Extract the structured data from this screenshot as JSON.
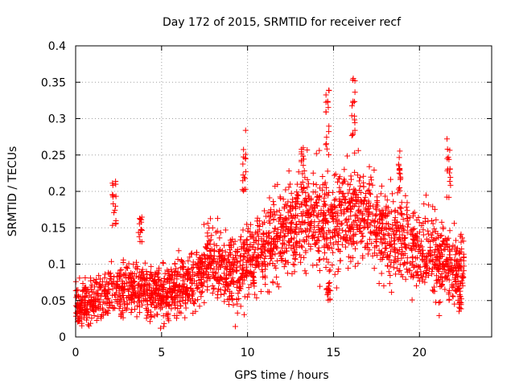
{
  "chart_data": {
    "type": "scatter",
    "title": "Day 172 of 2015, SRMTID for receiver recf",
    "xlabel": "GPS time / hours",
    "ylabel": "SRMTID / TECUs",
    "xlim": [
      0,
      24.2
    ],
    "ylim": [
      0,
      0.4
    ],
    "xticks": [
      0,
      5,
      10,
      15,
      20
    ],
    "xtick_labels": [
      "0",
      "5",
      "10",
      "15",
      "20"
    ],
    "yticks": [
      0,
      0.05,
      0.1,
      0.15,
      0.2,
      0.25,
      0.3,
      0.35,
      0.4
    ],
    "ytick_labels": [
      "0",
      "0.05",
      "0.1",
      "0.15",
      "0.2",
      "0.25",
      "0.3",
      "0.35",
      "0.4"
    ],
    "grid": true,
    "marker": "plus",
    "marker_color": "#ff0000",
    "data_extent_x": [
      0,
      22.6
    ],
    "series": [
      {
        "name": "SRMTID",
        "color": "#ff0000",
        "profile": [
          {
            "x": 0,
            "median": 0.045,
            "spread": 0.02
          },
          {
            "x": 1,
            "median": 0.048,
            "spread": 0.02
          },
          {
            "x": 2,
            "median": 0.06,
            "spread": 0.022
          },
          {
            "x": 3,
            "median": 0.068,
            "spread": 0.025
          },
          {
            "x": 4,
            "median": 0.065,
            "spread": 0.025
          },
          {
            "x": 5,
            "median": 0.062,
            "spread": 0.025
          },
          {
            "x": 6,
            "median": 0.065,
            "spread": 0.025
          },
          {
            "x": 7,
            "median": 0.08,
            "spread": 0.028
          },
          {
            "x": 8,
            "median": 0.11,
            "spread": 0.035
          },
          {
            "x": 9,
            "median": 0.085,
            "spread": 0.03
          },
          {
            "x": 10,
            "median": 0.1,
            "spread": 0.035
          },
          {
            "x": 11,
            "median": 0.12,
            "spread": 0.035
          },
          {
            "x": 12,
            "median": 0.14,
            "spread": 0.04
          },
          {
            "x": 13,
            "median": 0.16,
            "spread": 0.045
          },
          {
            "x": 14,
            "median": 0.17,
            "spread": 0.045
          },
          {
            "x": 15,
            "median": 0.16,
            "spread": 0.045
          },
          {
            "x": 16,
            "median": 0.17,
            "spread": 0.045
          },
          {
            "x": 17,
            "median": 0.17,
            "spread": 0.045
          },
          {
            "x": 18,
            "median": 0.14,
            "spread": 0.04
          },
          {
            "x": 19,
            "median": 0.13,
            "spread": 0.04
          },
          {
            "x": 20,
            "median": 0.12,
            "spread": 0.035
          },
          {
            "x": 21,
            "median": 0.11,
            "spread": 0.035
          },
          {
            "x": 22,
            "median": 0.09,
            "spread": 0.03
          },
          {
            "x": 22.6,
            "median": 0.1,
            "spread": 0.03
          }
        ],
        "spikes": [
          {
            "x": 2.25,
            "y_range": [
              0.15,
              0.225
            ]
          },
          {
            "x": 3.75,
            "y_range": [
              0.13,
              0.165
            ]
          },
          {
            "x": 9.8,
            "y_range": [
              0.2,
              0.29
            ]
          },
          {
            "x": 13.2,
            "y_range": [
              0.2,
              0.26
            ]
          },
          {
            "x": 14.65,
            "y_range": [
              0.25,
              0.34
            ]
          },
          {
            "x": 16.15,
            "y_range": [
              0.27,
              0.36
            ]
          },
          {
            "x": 21.7,
            "y_range": [
              0.19,
              0.282
            ]
          },
          {
            "x": 18.8,
            "y_range": [
              0.2,
              0.265
            ]
          },
          {
            "x": 14.7,
            "y_range": [
              0.05,
              0.08
            ]
          },
          {
            "x": 22.4,
            "y_range": [
              0.035,
              0.07
            ]
          }
        ],
        "approx_point_count": 2600
      }
    ]
  }
}
